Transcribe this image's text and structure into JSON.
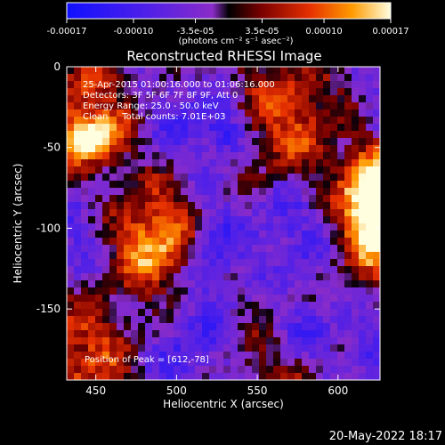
{
  "chart_data": {
    "type": "heatmap",
    "title": "Reconstructed RHESSI Image",
    "xlabel": "Heliocentric X (arcsec)",
    "ylabel": "Heliocentric Y (arcsec)",
    "xlim": [
      432,
      626
    ],
    "ylim": [
      -194,
      0
    ],
    "x_ticks": [
      450,
      500,
      550,
      600
    ],
    "y_ticks": [
      0,
      -50,
      -100,
      -150
    ],
    "colorbar": {
      "ticks": [
        "-0.00017",
        "-0.00010",
        "-3.5e-05",
        "3.5e-05",
        "0.00010",
        "0.00017"
      ],
      "tick_values": [
        -0.00017,
        -0.0001,
        -3.5e-05,
        3.5e-05,
        0.0001,
        0.00017
      ],
      "range": [
        -0.00017,
        0.00017
      ],
      "unit_label": "(photons cm⁻² s⁻¹ asec⁻²)"
    },
    "annotations": [
      "25-Apr-2015 01:00:16.000 to 01:06:16.000",
      "Detectors: 3F 5F 6F 7F 8F 9F, Att 0",
      "Energy Range: 25.0 - 50.0 keV",
      "Clean     Total counts: 7.01E+03"
    ],
    "peak_label": "Position of Peak = [612,-78]",
    "peak_position": [
      612,
      -78
    ],
    "grid": false
  },
  "footer": {
    "timestamp": "20-May-2022 18:17"
  }
}
